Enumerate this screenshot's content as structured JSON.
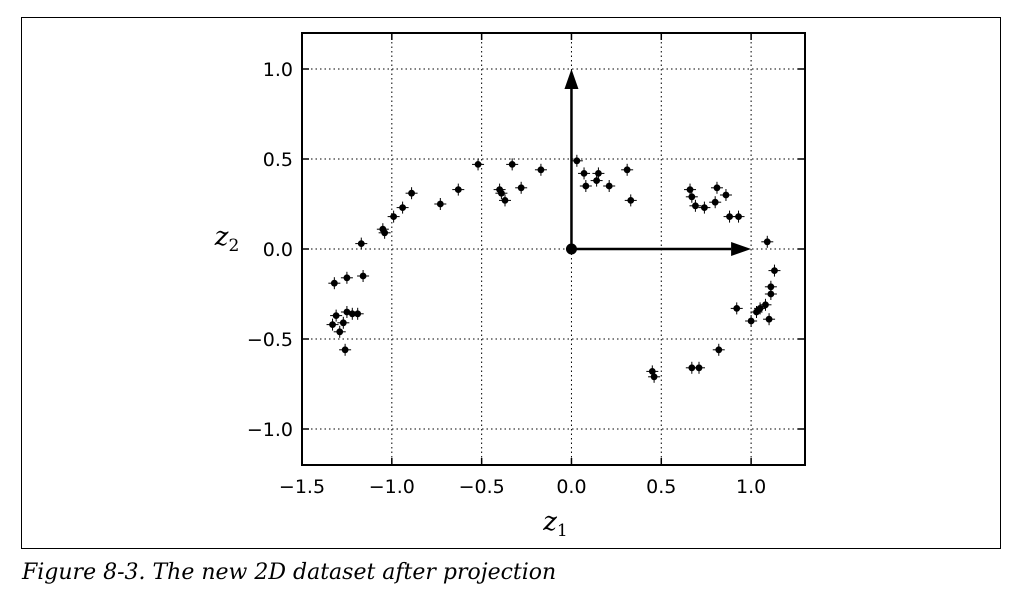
{
  "caption": "Figure 8-3. The new 2D dataset after projection",
  "chart_data": {
    "type": "scatter",
    "xlabel": "z1",
    "xlabel_main": "z",
    "xlabel_sub": "1",
    "ylabel": "z2",
    "ylabel_main": "z",
    "ylabel_sub": "2",
    "xlim": [
      -1.5,
      1.3
    ],
    "ylim": [
      -1.2,
      1.2
    ],
    "grid": true,
    "x_ticks": [
      -1.5,
      -1.0,
      -0.5,
      0.0,
      0.5,
      1.0
    ],
    "x_tick_labels": [
      "−1.5",
      "−1.0",
      "−0.5",
      "0.0",
      "0.5",
      "1.0"
    ],
    "y_ticks": [
      -1.0,
      -0.5,
      0.0,
      0.5,
      1.0
    ],
    "y_tick_labels": [
      "−1.0",
      "−0.5",
      "0.0",
      "0.5",
      "1.0"
    ],
    "marker_color": "#000000",
    "origin": [
      0.0,
      0.0
    ],
    "axis_vectors": [
      {
        "dx": 0.0,
        "dy": 1.0
      },
      {
        "dx": 1.0,
        "dy": 0.0
      }
    ],
    "points": [
      [
        -1.33,
        -0.42
      ],
      [
        -1.31,
        -0.37
      ],
      [
        -1.29,
        -0.46
      ],
      [
        -1.27,
        -0.41
      ],
      [
        -1.26,
        -0.56
      ],
      [
        -1.25,
        -0.35
      ],
      [
        -1.22,
        -0.36
      ],
      [
        -1.19,
        -0.36
      ],
      [
        -1.32,
        -0.19
      ],
      [
        -1.25,
        -0.16
      ],
      [
        -1.16,
        -0.15
      ],
      [
        -1.17,
        0.03
      ],
      [
        -1.05,
        0.11
      ],
      [
        -1.04,
        0.09
      ],
      [
        -0.99,
        0.18
      ],
      [
        -0.94,
        0.23
      ],
      [
        -0.89,
        0.31
      ],
      [
        -0.73,
        0.25
      ],
      [
        -0.63,
        0.33
      ],
      [
        -0.52,
        0.47
      ],
      [
        -0.4,
        0.33
      ],
      [
        -0.39,
        0.31
      ],
      [
        -0.37,
        0.27
      ],
      [
        -0.33,
        0.47
      ],
      [
        -0.28,
        0.34
      ],
      [
        -0.17,
        0.44
      ],
      [
        0.03,
        0.49
      ],
      [
        0.07,
        0.42
      ],
      [
        0.08,
        0.35
      ],
      [
        0.14,
        0.38
      ],
      [
        0.15,
        0.42
      ],
      [
        0.21,
        0.35
      ],
      [
        0.31,
        0.44
      ],
      [
        0.33,
        0.27
      ],
      [
        0.66,
        0.33
      ],
      [
        0.67,
        0.29
      ],
      [
        0.69,
        0.24
      ],
      [
        0.74,
        0.23
      ],
      [
        0.8,
        0.26
      ],
      [
        0.81,
        0.34
      ],
      [
        0.86,
        0.3
      ],
      [
        0.88,
        0.18
      ],
      [
        0.93,
        0.18
      ],
      [
        1.09,
        0.04
      ],
      [
        1.13,
        -0.12
      ],
      [
        1.11,
        -0.21
      ],
      [
        1.11,
        -0.25
      ],
      [
        1.08,
        -0.31
      ],
      [
        1.05,
        -0.33
      ],
      [
        1.03,
        -0.35
      ],
      [
        1.1,
        -0.39
      ],
      [
        1.0,
        -0.4
      ],
      [
        0.92,
        -0.33
      ],
      [
        0.82,
        -0.56
      ],
      [
        0.45,
        -0.68
      ],
      [
        0.46,
        -0.71
      ],
      [
        0.67,
        -0.66
      ],
      [
        0.71,
        -0.66
      ]
    ]
  }
}
